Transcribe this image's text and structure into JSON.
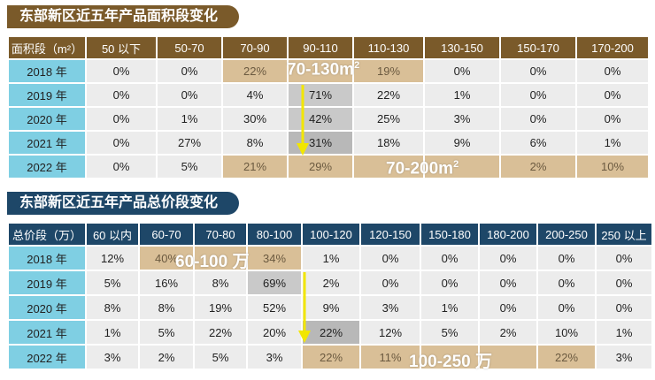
{
  "area": {
    "title": "东部新区近五年产品面积段变化",
    "header": [
      "面积段（m²）",
      "50 以下",
      "50-70",
      "70-90",
      "90-110",
      "110-130",
      "130-150",
      "150-170",
      "170-200"
    ],
    "rows": [
      {
        "year": "2018 年",
        "values": [
          "0%",
          "0%",
          "22%",
          "",
          "19%",
          "0%",
          "0%",
          "0%"
        ]
      },
      {
        "year": "2019 年",
        "values": [
          "0%",
          "0%",
          "4%",
          "71%",
          "22%",
          "1%",
          "0%",
          "0%"
        ]
      },
      {
        "year": "2020 年",
        "values": [
          "0%",
          "1%",
          "30%",
          "42%",
          "25%",
          "3%",
          "0%",
          "0%"
        ]
      },
      {
        "year": "2021 年",
        "values": [
          "0%",
          "27%",
          "8%",
          "31%",
          "18%",
          "9%",
          "6%",
          "1%"
        ]
      },
      {
        "year": "2022 年",
        "values": [
          "0%",
          "5%",
          "21%",
          "29%",
          "",
          "",
          "2%",
          "10%"
        ]
      }
    ],
    "callout_top": "70-130m",
    "callout_top_sup": "2",
    "callout_bottom": "70-200m",
    "callout_bottom_sup": "2"
  },
  "price": {
    "title": "东部新区近五年产品总价段变化",
    "header": [
      "总价段（万）",
      "60 以内",
      "60-70",
      "70-80",
      "80-100",
      "100-120",
      "120-150",
      "150-180",
      "180-200",
      "200-250",
      "250 以上"
    ],
    "rows": [
      {
        "year": "2018 年",
        "values": [
          "12%",
          "40%",
          "",
          "34%",
          "1%",
          "0%",
          "0%",
          "0%",
          "0%",
          "0%"
        ]
      },
      {
        "year": "2019 年",
        "values": [
          "5%",
          "16%",
          "8%",
          "69%",
          "2%",
          "0%",
          "0%",
          "0%",
          "0%",
          "0%"
        ]
      },
      {
        "year": "2020 年",
        "values": [
          "8%",
          "8%",
          "19%",
          "52%",
          "9%",
          "3%",
          "1%",
          "0%",
          "0%",
          "0%"
        ]
      },
      {
        "year": "2021 年",
        "values": [
          "1%",
          "5%",
          "22%",
          "20%",
          "22%",
          "12%",
          "5%",
          "2%",
          "10%",
          "1%"
        ]
      },
      {
        "year": "2022 年",
        "values": [
          "3%",
          "2%",
          "5%",
          "3%",
          "22%",
          "11%",
          "",
          "",
          "22%",
          "3%"
        ]
      }
    ],
    "callout_top": "60-100 万",
    "callout_bottom": "100-250 万"
  },
  "colors": {
    "brown": "#7a5a2a",
    "navy": "#1e4768",
    "year_cell": "#7fcfe3",
    "highlight": "#d9bf97",
    "arrow": "#f2e600"
  }
}
